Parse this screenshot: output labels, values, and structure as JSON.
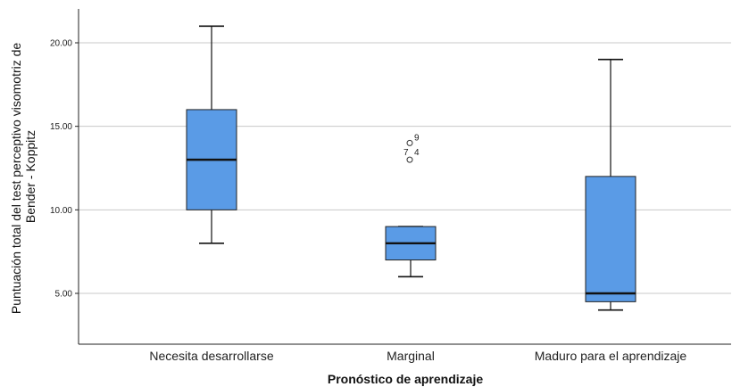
{
  "chart_data": {
    "type": "boxplot",
    "xlabel": "Pronóstico de aprendizaje",
    "ylabel_lines": [
      "Puntuación total del test perceptivo visomotriz de",
      "Bender - Koppitz"
    ],
    "ylim": [
      2.0,
      22.0
    ],
    "yticks": [
      5.0,
      10.0,
      15.0,
      20.0
    ],
    "ytick_labels": [
      "5.00",
      "10.00",
      "15.00",
      "20.00"
    ],
    "grid": true,
    "box_color": "#5a9be6",
    "categories": [
      "Necesita desarrollarse",
      "Marginal",
      "Maduro para el aprendizaje"
    ],
    "boxes": [
      {
        "category": "Necesita desarrollarse",
        "whisker_low": 8,
        "q1": 10,
        "median": 13,
        "q3": 16,
        "whisker_high": 21,
        "outliers": []
      },
      {
        "category": "Marginal",
        "whisker_low": 6,
        "q1": 7,
        "median": 8,
        "q3": 9,
        "whisker_high": 9,
        "outliers": [
          {
            "value": 14,
            "label": "9"
          },
          {
            "value": 13,
            "label": "7"
          },
          {
            "value": 13,
            "label": "4"
          }
        ]
      },
      {
        "category": "Maduro para el aprendizaje",
        "whisker_low": 4,
        "q1": 4.5,
        "median": 5,
        "q3": 12,
        "whisker_high": 19,
        "outliers": []
      }
    ]
  }
}
